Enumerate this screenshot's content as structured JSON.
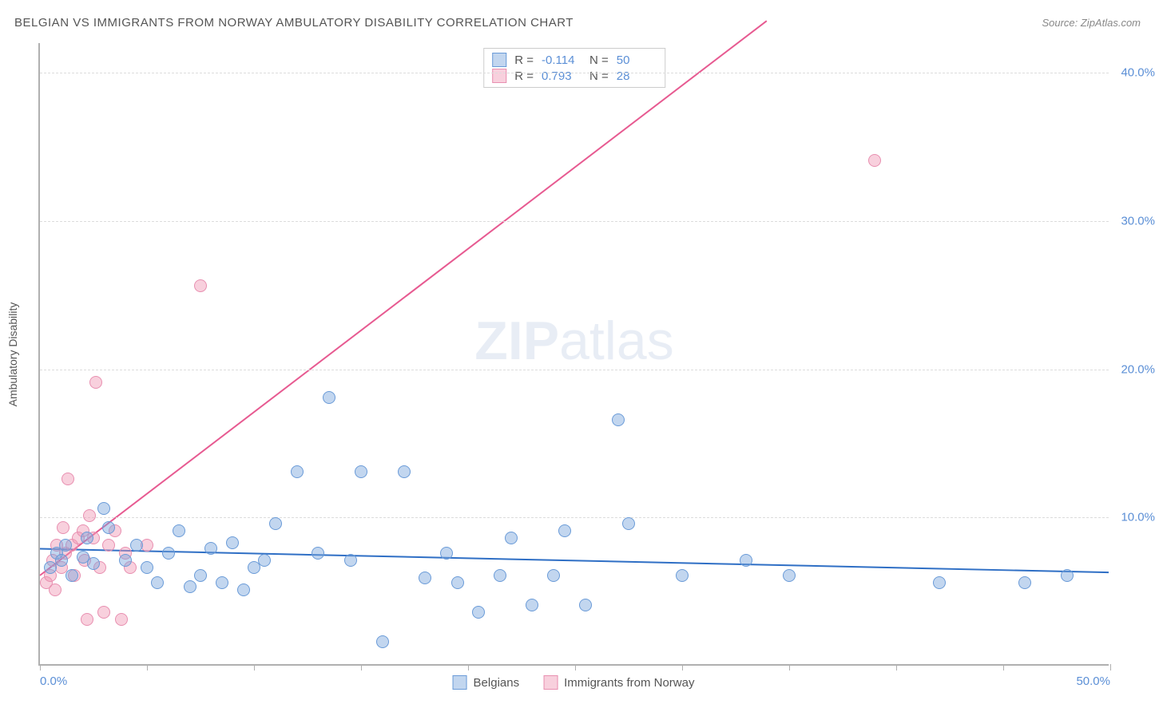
{
  "header": {
    "title": "BELGIAN VS IMMIGRANTS FROM NORWAY AMBULATORY DISABILITY CORRELATION CHART",
    "source": "Source: ZipAtlas.com"
  },
  "chart": {
    "type": "scatter",
    "y_axis_title": "Ambulatory Disability",
    "watermark_a": "ZIP",
    "watermark_b": "atlas",
    "xlim": [
      0,
      50
    ],
    "ylim": [
      0,
      42
    ],
    "y_ticks": [
      {
        "v": 10.0,
        "label": "10.0%"
      },
      {
        "v": 20.0,
        "label": "20.0%"
      },
      {
        "v": 30.0,
        "label": "30.0%"
      },
      {
        "v": 40.0,
        "label": "40.0%"
      }
    ],
    "x_ticks": [
      0,
      5,
      10,
      15,
      20,
      25,
      30,
      35,
      40,
      45,
      50
    ],
    "x_labels": [
      {
        "v": 0,
        "label": "0.0%"
      },
      {
        "v": 50,
        "label": "50.0%"
      }
    ],
    "series": {
      "belgians": {
        "label": "Belgians",
        "fill": "rgba(120,165,220,0.45)",
        "stroke": "#6a9bd8",
        "line_color": "#2f6fc5",
        "line_width": 2,
        "r_value": "-0.114",
        "n_value": "50",
        "trend": {
          "x1": 0,
          "y1": 7.8,
          "x2": 50,
          "y2": 6.2
        },
        "points": [
          [
            0.5,
            6.5
          ],
          [
            0.8,
            7.5
          ],
          [
            1.0,
            7.0
          ],
          [
            1.2,
            8.0
          ],
          [
            1.5,
            6.0
          ],
          [
            2.0,
            7.2
          ],
          [
            2.2,
            8.5
          ],
          [
            2.5,
            6.8
          ],
          [
            3.0,
            10.5
          ],
          [
            3.2,
            9.2
          ],
          [
            4.0,
            7.0
          ],
          [
            4.5,
            8.0
          ],
          [
            5.0,
            6.5
          ],
          [
            5.5,
            5.5
          ],
          [
            6.0,
            7.5
          ],
          [
            6.5,
            9.0
          ],
          [
            7.0,
            5.2
          ],
          [
            7.5,
            6.0
          ],
          [
            8.0,
            7.8
          ],
          [
            8.5,
            5.5
          ],
          [
            9.0,
            8.2
          ],
          [
            9.5,
            5.0
          ],
          [
            10.0,
            6.5
          ],
          [
            10.5,
            7.0
          ],
          [
            11.0,
            9.5
          ],
          [
            12.0,
            13.0
          ],
          [
            13.0,
            7.5
          ],
          [
            13.5,
            18.0
          ],
          [
            14.5,
            7.0
          ],
          [
            15.0,
            13.0
          ],
          [
            16.0,
            1.5
          ],
          [
            17.0,
            13.0
          ],
          [
            18.0,
            5.8
          ],
          [
            19.0,
            7.5
          ],
          [
            19.5,
            5.5
          ],
          [
            20.5,
            3.5
          ],
          [
            21.5,
            6.0
          ],
          [
            22.0,
            8.5
          ],
          [
            23.0,
            4.0
          ],
          [
            24.0,
            6.0
          ],
          [
            24.5,
            9.0
          ],
          [
            25.5,
            4.0
          ],
          [
            27.0,
            16.5
          ],
          [
            27.5,
            9.5
          ],
          [
            30.0,
            6.0
          ],
          [
            33.0,
            7.0
          ],
          [
            35.0,
            6.0
          ],
          [
            42.0,
            5.5
          ],
          [
            46.0,
            5.5
          ],
          [
            48.0,
            6.0
          ]
        ]
      },
      "norway": {
        "label": "Immigrants from Norway",
        "fill": "rgba(240,150,180,0.45)",
        "stroke": "#e88fb0",
        "line_color": "#e75a91",
        "line_width": 2,
        "r_value": "0.793",
        "n_value": "28",
        "trend": {
          "x1": 0,
          "y1": 6.0,
          "x2": 34,
          "y2": 43.5
        },
        "points": [
          [
            0.3,
            5.5
          ],
          [
            0.5,
            6.0
          ],
          [
            0.6,
            7.0
          ],
          [
            0.7,
            5.0
          ],
          [
            0.8,
            8.0
          ],
          [
            1.0,
            6.5
          ],
          [
            1.1,
            9.2
          ],
          [
            1.2,
            7.5
          ],
          [
            1.3,
            12.5
          ],
          [
            1.5,
            8.0
          ],
          [
            1.6,
            6.0
          ],
          [
            1.8,
            8.5
          ],
          [
            2.0,
            9.0
          ],
          [
            2.1,
            7.0
          ],
          [
            2.2,
            3.0
          ],
          [
            2.3,
            10.0
          ],
          [
            2.5,
            8.5
          ],
          [
            2.6,
            19.0
          ],
          [
            2.8,
            6.5
          ],
          [
            3.0,
            3.5
          ],
          [
            3.2,
            8.0
          ],
          [
            3.5,
            9.0
          ],
          [
            3.8,
            3.0
          ],
          [
            4.0,
            7.5
          ],
          [
            4.2,
            6.5
          ],
          [
            5.0,
            8.0
          ],
          [
            7.5,
            25.5
          ],
          [
            39.0,
            34.0
          ]
        ]
      }
    },
    "stats_labels": {
      "r": "R =",
      "n": "N ="
    }
  }
}
